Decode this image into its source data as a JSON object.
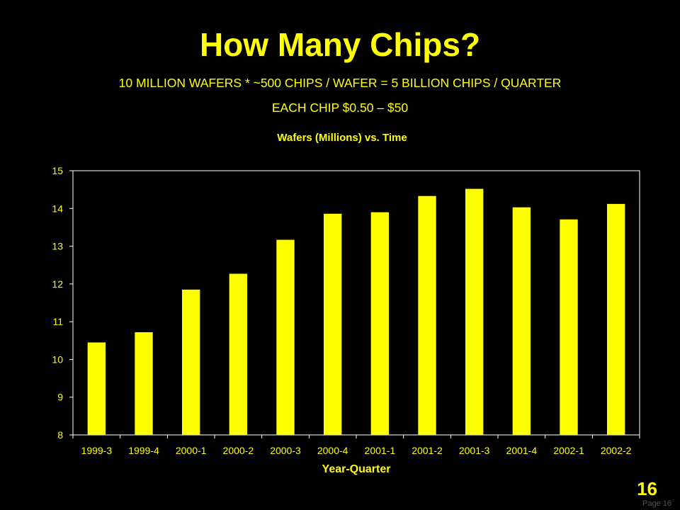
{
  "slide": {
    "title": "How Many Chips?",
    "subtitle_line1": "10 MILLION WAFERS * ~500 CHIPS / WAFER = 5 BILLION CHIPS / QUARTER",
    "subtitle_line2": "EACH CHIP $0.50 – $50",
    "slide_number": "16",
    "page_label": "Page 16"
  },
  "colors": {
    "background": "#000000",
    "accent": "#ffff00",
    "axis": "#ffffff"
  },
  "chart_data": {
    "type": "bar",
    "title": "Wafers (Millions) vs. Time",
    "xlabel": "Year-Quarter",
    "ylabel": "",
    "ylim": [
      8,
      15
    ],
    "yticks": [
      8,
      9,
      10,
      11,
      12,
      13,
      14,
      15
    ],
    "categories": [
      "1999-3",
      "1999-4",
      "2000-1",
      "2000-2",
      "2000-3",
      "2000-4",
      "2001-1",
      "2001-2",
      "2001-3",
      "2001-4",
      "2002-1",
      "2002-2"
    ],
    "values": [
      10.45,
      10.72,
      11.85,
      12.27,
      13.17,
      13.86,
      13.9,
      14.33,
      14.52,
      14.03,
      13.71,
      14.12
    ],
    "bar_color": "#ffff00",
    "grid": false,
    "legend": "none"
  }
}
